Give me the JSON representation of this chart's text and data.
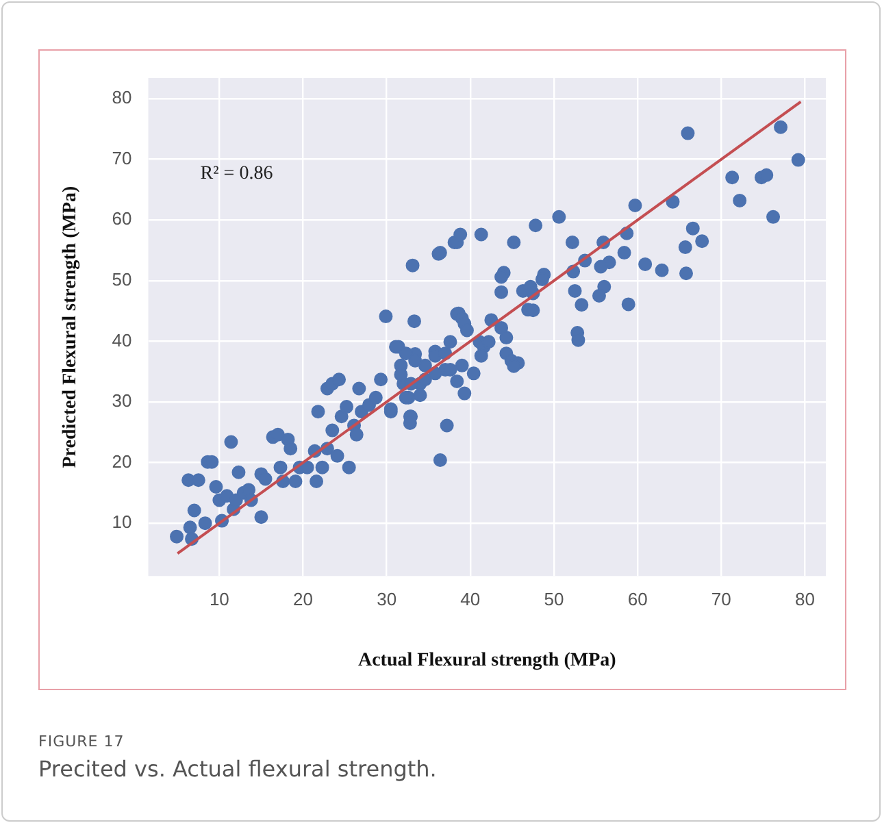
{
  "chart_data": {
    "type": "scatter",
    "xlabel": "Actual Flexural strength (MPa)",
    "ylabel": "Predicted Flexural strength (MPa)",
    "xlim": [
      1.5,
      82.5
    ],
    "ylim": [
      1.3,
      83.4
    ],
    "xticks": [
      10,
      20,
      30,
      40,
      50,
      60,
      70,
      80
    ],
    "yticks": [
      10,
      20,
      30,
      40,
      50,
      60,
      70,
      80
    ],
    "grid": true,
    "annotations": [
      "R² = 0.86",
      "FIGURE 17",
      "Precited vs. Actual flexural strength."
    ],
    "series": [
      {
        "marker": "circle",
        "color": "#4c72b0",
        "x": [
          4.9,
          6.5,
          6.7,
          7.0,
          6.3,
          7.5,
          8.3,
          8.6,
          9.1,
          9.6,
          10.0,
          10.3,
          10.9,
          11.4,
          11.7,
          12.0,
          12.3,
          12.9,
          13.5,
          13.8,
          15.0,
          15.0,
          15.5,
          16.4,
          17.0,
          18.2,
          18.5,
          17.3,
          17.6,
          19.1,
          19.6,
          20.5,
          21.4,
          21.6,
          21.8,
          22.3,
          22.9,
          22.9,
          23.5,
          24.3,
          23.5,
          24.1,
          24.6,
          25.2,
          25.5,
          26.1,
          26.4,
          26.7,
          27.0,
          27.9,
          28.7,
          29.3,
          29.9,
          30.5,
          31.4,
          31.7,
          32.0,
          32.6,
          32.9,
          33.3,
          33.1,
          33.4,
          34.0,
          36.4,
          37.2,
          36.2,
          38.1,
          38.4,
          37.6,
          35.8,
          34.6,
          37.0,
          36.4,
          38.4,
          38.8,
          41.3,
          45.2,
          47.8,
          50.6,
          52.2,
          55.9,
          58.7,
          59.7,
          64.2,
          66.0,
          66.6,
          67.7,
          65.7,
          65.8,
          71.3,
          72.2,
          74.8,
          75.4,
          76.2,
          77.1,
          79.2,
          60.9,
          62.9,
          58.4,
          56.6,
          55.6,
          53.7,
          52.3,
          52.5,
          53.3,
          56.0,
          55.4,
          58.9,
          52.8,
          52.9,
          48.8,
          48.6,
          44.0,
          43.7,
          43.7,
          46.3,
          47.2,
          47.5,
          46.9,
          47.5,
          38.6,
          39.0,
          39.3,
          39.6,
          42.5,
          43.7,
          44.3,
          41.1,
          41.6,
          42.2,
          41.3,
          44.3,
          44.9,
          45.7,
          45.2,
          40.4,
          35.8,
          37.0,
          39.0,
          31.1,
          32.3,
          33.4,
          31.7,
          32.9,
          34.6,
          35.8,
          37.6,
          34.0,
          32.3,
          30.5,
          32.8,
          32.8,
          38.4,
          39.3
        ],
        "values": [
          7.8,
          9.3,
          7.4,
          12.1,
          17.1,
          17.1,
          10.0,
          20.1,
          20.1,
          16.0,
          13.8,
          10.4,
          14.5,
          23.4,
          12.3,
          13.8,
          18.4,
          15.0,
          15.5,
          13.8,
          11.0,
          18.1,
          17.3,
          24.2,
          24.6,
          23.8,
          22.3,
          19.2,
          16.9,
          16.9,
          19.2,
          19.2,
          21.9,
          16.9,
          28.4,
          19.2,
          22.3,
          32.2,
          33.0,
          33.7,
          25.3,
          21.1,
          27.6,
          29.2,
          19.2,
          26.1,
          24.6,
          32.2,
          28.4,
          29.5,
          30.7,
          33.7,
          44.1,
          28.4,
          39.1,
          36.0,
          33.0,
          30.7,
          27.6,
          43.3,
          52.5,
          37.9,
          33.0,
          20.4,
          26.1,
          54.4,
          56.3,
          44.5,
          39.9,
          38.3,
          36.0,
          35.3,
          54.6,
          56.3,
          57.6,
          57.6,
          56.3,
          59.1,
          60.5,
          56.3,
          56.3,
          57.8,
          62.4,
          63.0,
          74.3,
          58.6,
          56.5,
          55.5,
          51.2,
          67.0,
          63.2,
          67.0,
          67.4,
          60.5,
          75.3,
          69.9,
          52.7,
          51.7,
          54.6,
          53.0,
          52.3,
          53.3,
          51.5,
          48.3,
          46.0,
          49.0,
          47.5,
          46.1,
          41.4,
          40.2,
          51.0,
          50.2,
          51.3,
          50.6,
          48.1,
          48.3,
          49.0,
          47.9,
          45.2,
          45.1,
          44.6,
          43.8,
          42.9,
          41.8,
          43.5,
          42.2,
          40.6,
          39.9,
          39.1,
          39.9,
          37.6,
          38.0,
          36.8,
          36.4,
          35.9,
          34.7,
          37.6,
          38.0,
          36.0,
          39.1,
          38.0,
          36.8,
          34.5,
          33.0,
          33.7,
          34.7,
          35.3,
          31.1,
          30.7,
          28.8,
          27.6,
          26.5,
          33.4,
          31.4
        ]
      },
      {
        "type": "line",
        "color": "#c44e52",
        "x": [
          5,
          79.5
        ],
        "values": [
          5,
          79.5
        ]
      }
    ]
  }
}
